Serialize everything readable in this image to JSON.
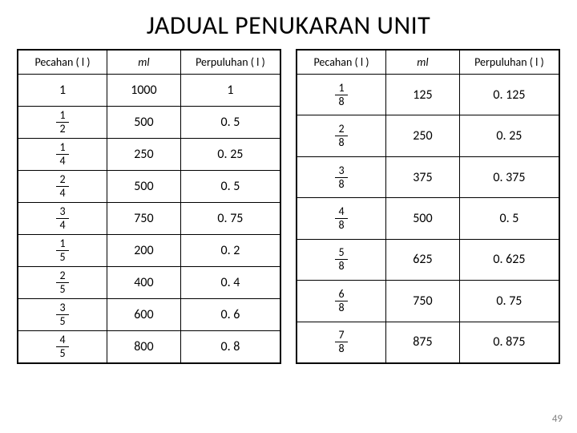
{
  "title": "JADUAL PENUKARAN UNIT",
  "page_number": "49",
  "headers": {
    "pecahan": "Pecahan ( l )",
    "ml_m": "m",
    "ml_l": "l",
    "perpuluhan": "Perpuluhan ( l )"
  },
  "left": {
    "rows": [
      {
        "whole": "1",
        "ml": "1000",
        "dec": "1"
      },
      {
        "num": "1",
        "den": "2",
        "ml": "500",
        "dec": "0. 5"
      },
      {
        "num": "1",
        "den": "4",
        "ml": "250",
        "dec": "0. 25"
      },
      {
        "num": "2",
        "den": "4",
        "ml": "500",
        "dec": "0. 5"
      },
      {
        "num": "3",
        "den": "4",
        "ml": "750",
        "dec": "0. 75"
      },
      {
        "num": "1",
        "den": "5",
        "ml": "200",
        "dec": "0. 2"
      },
      {
        "num": "2",
        "den": "5",
        "ml": "400",
        "dec": "0. 4"
      },
      {
        "num": "3",
        "den": "5",
        "ml": "600",
        "dec": "0. 6"
      },
      {
        "num": "4",
        "den": "5",
        "ml": "800",
        "dec": "0. 8"
      }
    ]
  },
  "right": {
    "rows": [
      {
        "num": "1",
        "den": "8",
        "ml": "125",
        "dec": "0. 125"
      },
      {
        "num": "2",
        "den": "8",
        "ml": "250",
        "dec": "0. 25"
      },
      {
        "num": "3",
        "den": "8",
        "ml": "375",
        "dec": "0. 375"
      },
      {
        "num": "4",
        "den": "8",
        "ml": "500",
        "dec": "0. 5"
      },
      {
        "num": "5",
        "den": "8",
        "ml": "625",
        "dec": "0. 625"
      },
      {
        "num": "6",
        "den": "8",
        "ml": "750",
        "dec": "0. 75"
      },
      {
        "num": "7",
        "den": "8",
        "ml": "875",
        "dec": "0. 875"
      }
    ]
  }
}
